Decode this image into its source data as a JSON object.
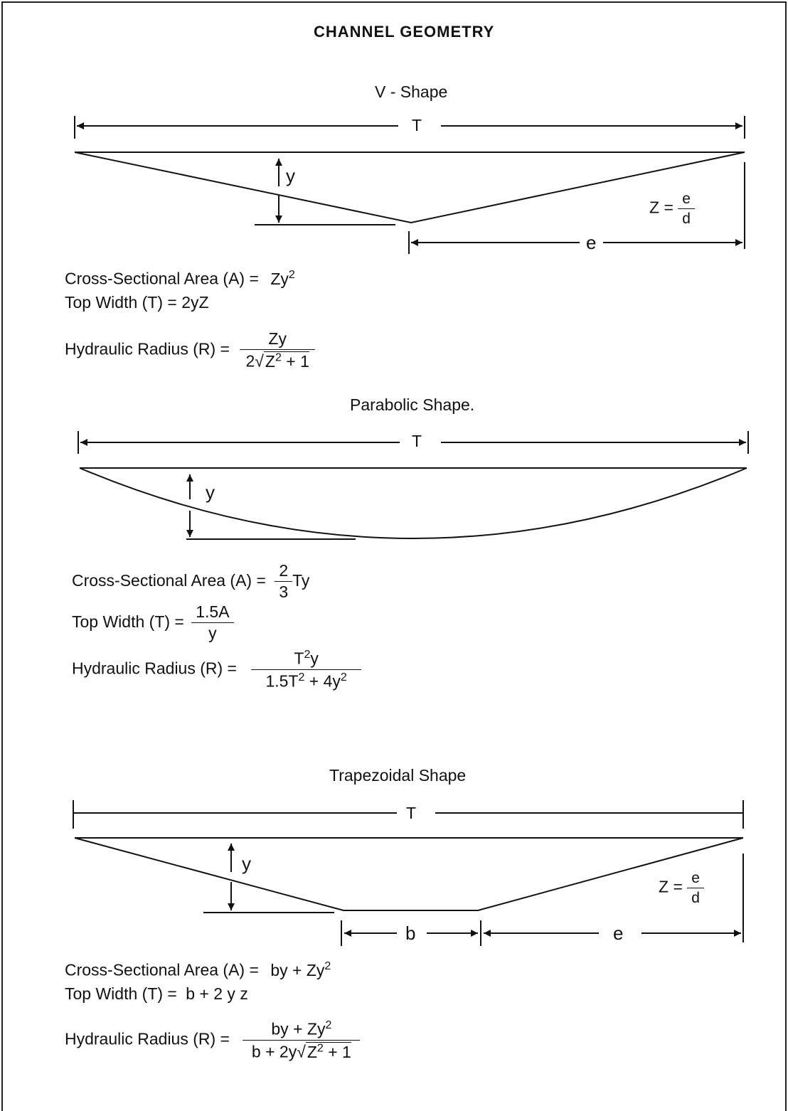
{
  "title": "CHANNEL GEOMETRY",
  "v_shape": {
    "heading": "V - Shape",
    "dim_T": "T",
    "dim_y": "y",
    "dim_e": "e",
    "z_prefix": "Z =",
    "z_num": "e",
    "z_den": "d",
    "area_label": "Cross-Sectional Area (A) =",
    "area_base": "Zy",
    "area_exp": "2",
    "topwidth_label": "Top Width (T) = 2yZ",
    "radius_label": "Hydraulic Radius (R) =",
    "radius_num": "Zy",
    "radius_den_pre": "2",
    "radius_den_rad": "Z",
    "radius_den_exp": "2",
    "radius_den_post": " + 1"
  },
  "parabolic": {
    "heading": "Parabolic Shape.",
    "dim_T": "T",
    "dim_y": "y",
    "area_label": "Cross-Sectional Area (A) =",
    "area_num": "2",
    "area_den": "3",
    "area_post": "Ty",
    "topwidth_label": "Top Width (T) =",
    "topwidth_num": "1.5A",
    "topwidth_den": "y",
    "radius_label": "Hydraulic Radius (R) =",
    "radius_num_base": "T",
    "radius_num_exp": "2",
    "radius_num_post": "y",
    "radius_den_a": "1.5T",
    "radius_den_a_exp": "2",
    "radius_den_b": " + 4y",
    "radius_den_b_exp": "2"
  },
  "trapezoidal": {
    "heading": "Trapezoidal Shape",
    "dim_T": "T",
    "dim_y": "y",
    "dim_b": "b",
    "dim_e": "e",
    "z_prefix": "Z =",
    "z_num": "e",
    "z_den": "d",
    "area_label": "Cross-Sectional Area (A) =",
    "area_expr": "by + Zy",
    "area_exp": "2",
    "topwidth_label": "Top Width (T) =",
    "topwidth_expr": "b + 2 y z",
    "radius_label": "Hydraulic Radius (R) =",
    "radius_num": "by + Zy",
    "radius_num_exp": "2",
    "radius_den_pre": "b + 2y",
    "radius_den_rad": "Z",
    "radius_den_exp": "2",
    "radius_den_post": " + 1"
  }
}
